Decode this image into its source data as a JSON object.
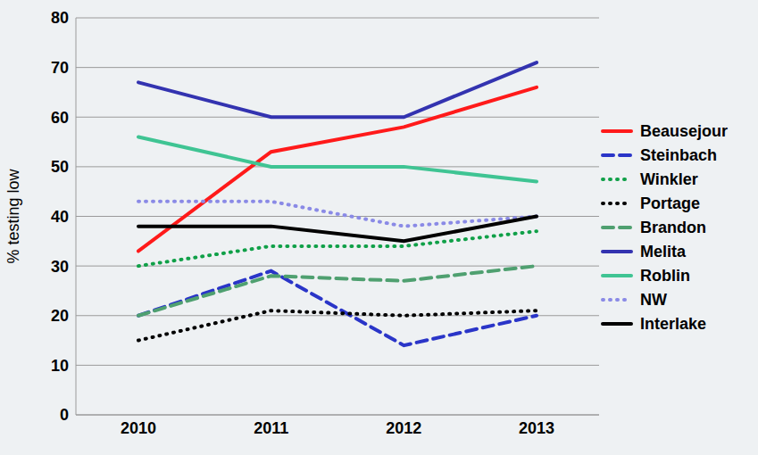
{
  "chart_data": {
    "type": "line",
    "y_label": "% testing low",
    "categories": [
      "2010",
      "2011",
      "2012",
      "2013"
    ],
    "ylim": [
      0,
      80
    ],
    "yticks": [
      0,
      10,
      20,
      30,
      40,
      50,
      60,
      70,
      80
    ],
    "grid": true,
    "legend": "right",
    "series": [
      {
        "name": "Beausejour",
        "color": "#ff1a1a",
        "line_style": "solid",
        "values": [
          33,
          53,
          58,
          66
        ]
      },
      {
        "name": "Steinbach",
        "color": "#2a35c8",
        "line_style": "dashed",
        "values": [
          20,
          29,
          14,
          20
        ]
      },
      {
        "name": "Winkler",
        "color": "#10a048",
        "line_style": "dotted",
        "values": [
          30,
          34,
          34,
          37
        ]
      },
      {
        "name": "Portage",
        "color": "#000000",
        "line_style": "dotted",
        "values": [
          15,
          21,
          20,
          21
        ]
      },
      {
        "name": "Brandon",
        "color": "#4fa070",
        "line_style": "dashed",
        "values": [
          20,
          28,
          27,
          30
        ]
      },
      {
        "name": "Melita",
        "color": "#3333b0",
        "line_style": "solid",
        "values": [
          67,
          60,
          60,
          71
        ]
      },
      {
        "name": "Roblin",
        "color": "#3fc493",
        "line_style": "solid",
        "values": [
          56,
          50,
          50,
          47
        ]
      },
      {
        "name": "NW",
        "color": "#8a8ae6",
        "line_style": "dotted",
        "values": [
          43,
          43,
          38,
          40
        ]
      },
      {
        "name": "Interlake",
        "color": "#000000",
        "line_style": "solid",
        "values": [
          38,
          38,
          35,
          40
        ]
      }
    ]
  }
}
